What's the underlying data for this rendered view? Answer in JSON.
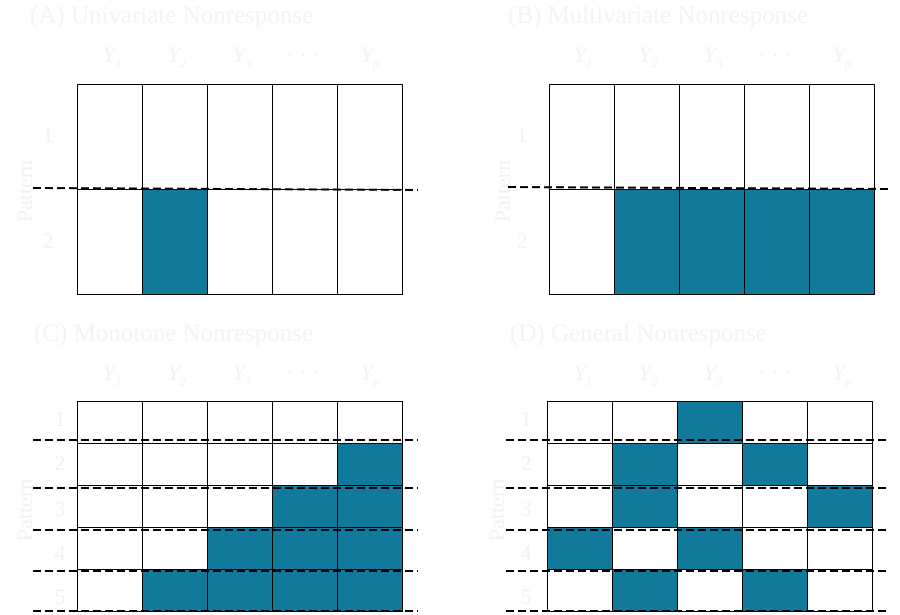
{
  "panels": {
    "a": {
      "title": "(A) Univariate Nonresponse",
      "axis": "Pattern",
      "rows": [
        "1",
        "2"
      ]
    },
    "b": {
      "title": "(B) Multivariate Nonresponse",
      "axis": "Pattern",
      "rows": [
        "1",
        "2"
      ]
    },
    "c": {
      "title": "(C) Monotone Nonresponse",
      "axis": "Pattern",
      "rows": [
        "1",
        "2",
        "3",
        "4",
        "5"
      ]
    },
    "d": {
      "title": "(D) General Nonresponse",
      "axis": "Pattern",
      "rows": [
        "1",
        "2",
        "3",
        "4",
        "5"
      ]
    }
  },
  "columns": {
    "c1": "Y",
    "s1": "1",
    "c2": "Y",
    "s2": "2",
    "c3": "Y",
    "s3": "3",
    "dots": "· · ·",
    "cp": "Y",
    "sp": "p"
  },
  "colors": {
    "missing": "#11799a",
    "observed": "#ffffff"
  },
  "patterns": {
    "a": [
      [
        0,
        0,
        0,
        0,
        0
      ],
      [
        0,
        1,
        0,
        0,
        0
      ]
    ],
    "b": [
      [
        0,
        0,
        0,
        0,
        0
      ],
      [
        0,
        1,
        1,
        1,
        1
      ]
    ],
    "c": [
      [
        0,
        0,
        0,
        0,
        0
      ],
      [
        0,
        0,
        0,
        0,
        1
      ],
      [
        0,
        0,
        0,
        1,
        1
      ],
      [
        0,
        0,
        1,
        1,
        1
      ],
      [
        0,
        1,
        1,
        1,
        1
      ]
    ],
    "d": [
      [
        0,
        0,
        1,
        0,
        0
      ],
      [
        0,
        1,
        0,
        1,
        0
      ],
      [
        0,
        1,
        0,
        0,
        1
      ],
      [
        1,
        0,
        1,
        0,
        0
      ],
      [
        0,
        1,
        0,
        1,
        0
      ]
    ]
  }
}
